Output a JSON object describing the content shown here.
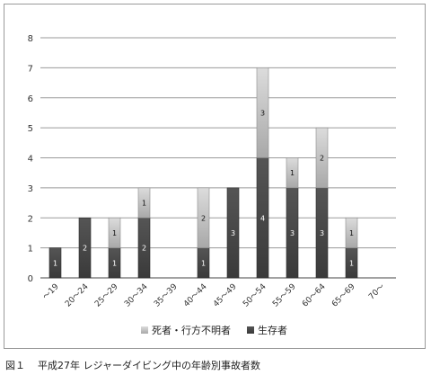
{
  "chart_data": {
    "type": "bar",
    "stacked": true,
    "categories": [
      "～19",
      "20～24",
      "25～29",
      "30～34",
      "35～39",
      "40～44",
      "45～49",
      "50～54",
      "55～59",
      "60～64",
      "65～69",
      "70～"
    ],
    "series": [
      {
        "name": "生存者",
        "color": "#555555",
        "values": [
          1,
          2,
          1,
          2,
          0,
          1,
          3,
          4,
          3,
          3,
          1,
          0
        ]
      },
      {
        "name": "死者・行方不明者",
        "color": "#b9b9b9",
        "values": [
          0,
          0,
          1,
          1,
          0,
          2,
          0,
          3,
          1,
          2,
          1,
          0
        ]
      }
    ],
    "legend_order": [
      "死者・行方不明者",
      "生存者"
    ],
    "ylim": [
      0,
      8
    ],
    "yticks": [
      0,
      1,
      2,
      3,
      4,
      5,
      6,
      7,
      8
    ],
    "grid": true,
    "legend": "bottom"
  },
  "caption": {
    "figure": "図１",
    "text": "平成27年 レジャーダイビング中の年齢別事故者数"
  }
}
